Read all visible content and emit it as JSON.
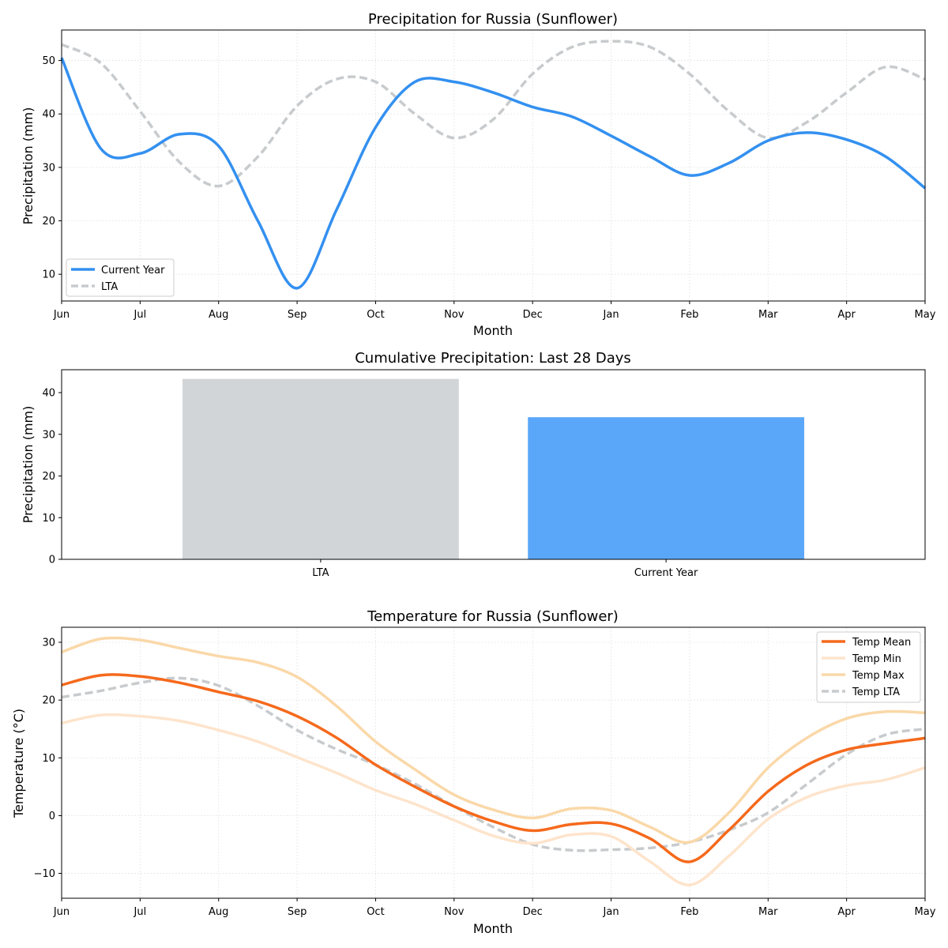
{
  "chart_data": [
    {
      "type": "line",
      "title": "Precipitation for Russia (Sunflower)",
      "xlabel": "Month",
      "ylabel": "Precipitation (mm)",
      "x": [
        "Jun",
        "Jul",
        "Aug",
        "Sep",
        "Oct",
        "Nov",
        "Dec",
        "Jan",
        "Feb",
        "Mar",
        "Apr",
        "May"
      ],
      "ylim": [
        5,
        55.7
      ],
      "yticks": [
        10,
        20,
        30,
        40,
        50
      ],
      "grid": true,
      "legend": "lower-left",
      "series": [
        {
          "name": "Current Year",
          "color": "#3390f0",
          "style": "solid",
          "values": [
            50.5,
            32.6,
            34.0,
            7.4,
            37.5,
            46.0,
            41.3,
            35.9,
            28.5,
            35.0,
            35.2,
            26.1
          ],
          "mid_values": [
            33.5,
            36.2,
            20.0,
            22.0,
            46.0,
            44.0,
            39.5,
            32.0,
            30.8,
            36.5,
            32.0
          ]
        },
        {
          "name": "LTA",
          "color": "#c8cbcd",
          "style": "dashed",
          "values": [
            53.0,
            40.5,
            26.5,
            41.5,
            46.0,
            35.5,
            47.5,
            53.6,
            47.5,
            35.5,
            44.0,
            46.5
          ],
          "mid_values": [
            49.5,
            31.0,
            32.0,
            46.5,
            40.0,
            39.0,
            52.5,
            52.5,
            40.5,
            38.5,
            48.8
          ]
        }
      ]
    },
    {
      "type": "bar",
      "title": "Cumulative Precipitation: Last 28 Days",
      "xlabel": "",
      "ylabel": "Precipitation (mm)",
      "categories": [
        "LTA",
        "Current Year"
      ],
      "values": [
        43.3,
        34.1
      ],
      "colors": [
        "#d1d5d8",
        "#5aa7fa"
      ],
      "ylim": [
        0,
        45.5
      ],
      "yticks": [
        0,
        10,
        20,
        30,
        40
      ]
    },
    {
      "type": "line",
      "title": "Temperature for Russia (Sunflower)",
      "xlabel": "Month",
      "ylabel": "Temperature (°C)",
      "x": [
        "Jun",
        "Jul",
        "Aug",
        "Sep",
        "Oct",
        "Nov",
        "Dec",
        "Jan",
        "Feb",
        "Mar",
        "Apr",
        "May"
      ],
      "ylim": [
        -14.3,
        32.6
      ],
      "yticks": [
        -10,
        0,
        10,
        20,
        30
      ],
      "ytick_labels": [
        "−10",
        "0",
        "10",
        "20",
        "30"
      ],
      "grid": true,
      "legend": "top-right",
      "series": [
        {
          "name": "Temp Mean",
          "color": "#f5691c",
          "style": "solid",
          "values": [
            22.6,
            24.1,
            21.4,
            17.2,
            8.8,
            1.6,
            -2.6,
            -1.4,
            -8.0,
            4.2,
            11.4,
            13.4
          ],
          "mid_values": [
            24.3,
            23.0,
            19.8,
            13.5,
            5.0,
            -1.0,
            -1.5,
            -4.0,
            -2.5,
            8.8,
            12.5
          ]
        },
        {
          "name": "Temp Min",
          "color": "#fee4cc",
          "style": "solid",
          "values": [
            16.0,
            17.2,
            14.8,
            10.1,
            4.4,
            -0.8,
            -4.8,
            -3.6,
            -12.0,
            -0.6,
            5.2,
            8.3
          ],
          "mid_values": [
            17.4,
            16.4,
            12.8,
            7.4,
            2.0,
            -3.5,
            -3.3,
            -8.0,
            -7.0,
            3.2,
            6.2
          ]
        },
        {
          "name": "Temp Max",
          "color": "#fad8a8",
          "style": "solid",
          "values": [
            28.3,
            30.4,
            27.6,
            24.0,
            12.8,
            3.6,
            -0.4,
            0.9,
            -4.6,
            8.3,
            16.8,
            17.8
          ],
          "mid_values": [
            30.6,
            29.0,
            26.5,
            19.0,
            8.0,
            1.0,
            1.2,
            -2.0,
            0.5,
            13.5,
            18.0
          ]
        },
        {
          "name": "Temp LTA",
          "color": "#c8cbcd",
          "style": "dashed",
          "values": [
            20.5,
            23.0,
            22.5,
            14.8,
            8.8,
            1.6,
            -5.0,
            -5.9,
            -4.6,
            0.5,
            10.6,
            15.0
          ],
          "mid_values": [
            21.6,
            23.8,
            19.0,
            11.5,
            5.5,
            -2.0,
            -6.0,
            -5.6,
            -2.5,
            5.5,
            14.0
          ]
        }
      ]
    }
  ]
}
